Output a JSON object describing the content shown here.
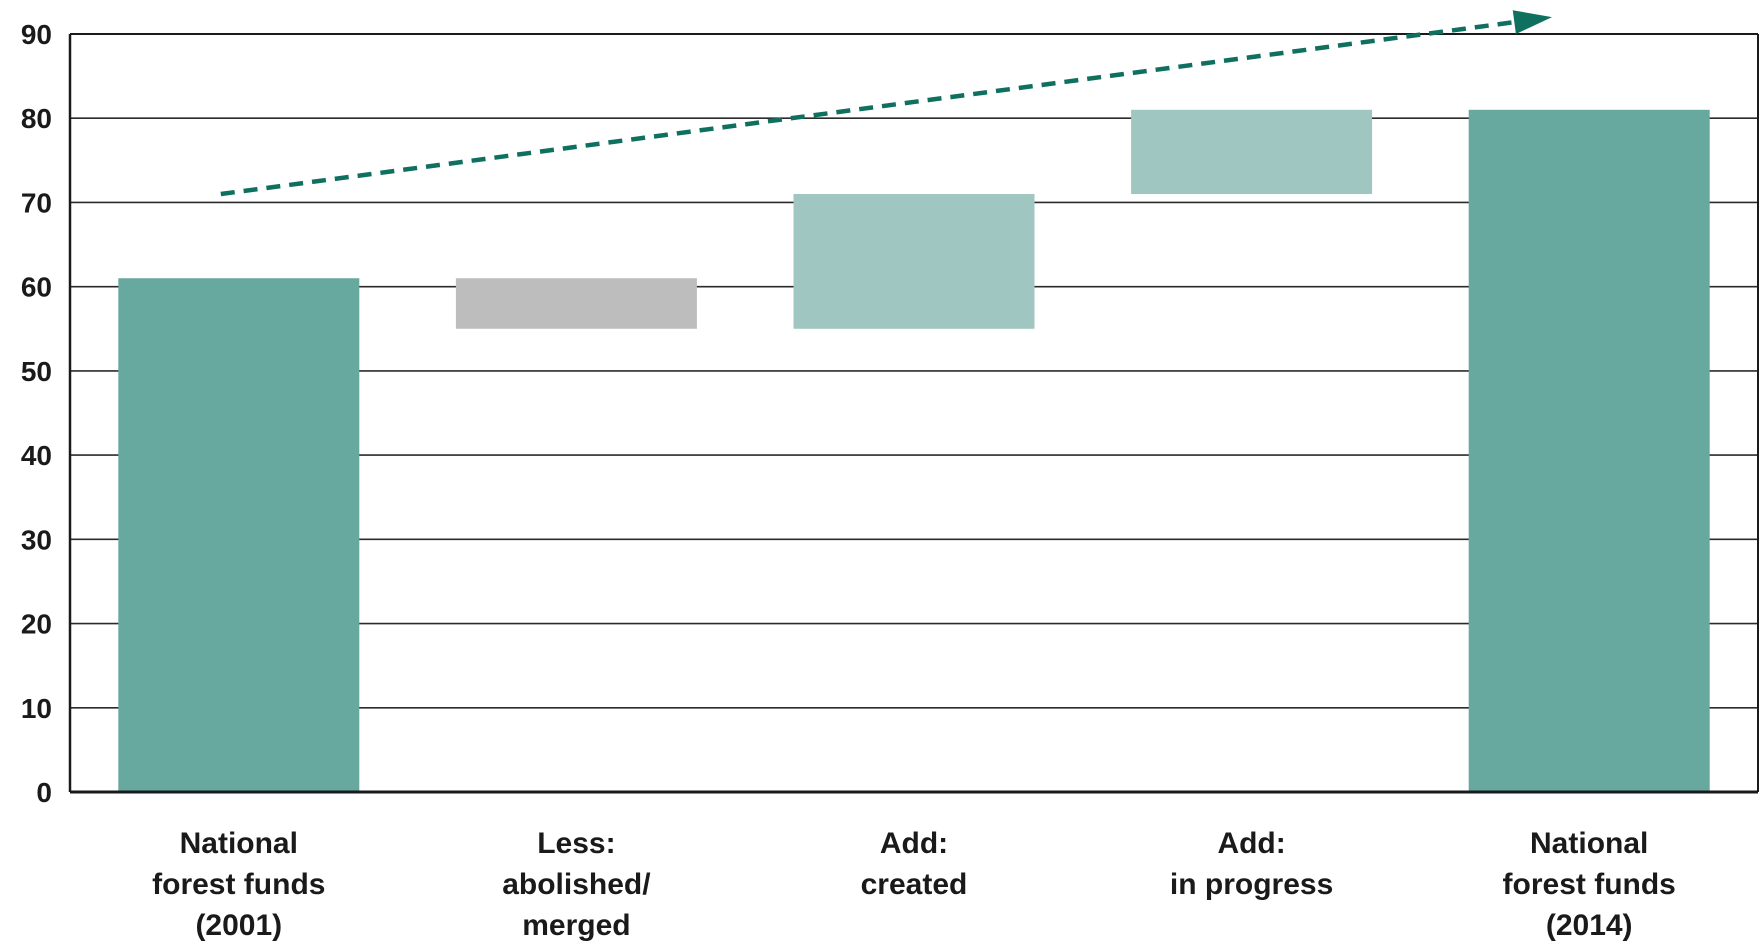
{
  "chart_data": {
    "type": "bar",
    "subtype": "waterfall",
    "title": "",
    "xlabel": "",
    "ylabel": "",
    "ylim": [
      0,
      90
    ],
    "yticks": [
      0,
      10,
      20,
      30,
      40,
      50,
      60,
      70,
      80,
      90
    ],
    "grid": true,
    "categories": [
      [
        "National",
        "forest funds",
        "(2001)"
      ],
      [
        "Less:",
        "abolished/",
        "merged"
      ],
      [
        "Add:",
        "created"
      ],
      [
        "Add:",
        "in progress"
      ],
      [
        "National",
        "forest funds",
        "(2014)"
      ]
    ],
    "bars": [
      {
        "base": 0,
        "top": 61,
        "kind": "total"
      },
      {
        "base": 55,
        "top": 61,
        "kind": "decrease"
      },
      {
        "base": 55,
        "top": 71,
        "kind": "increase"
      },
      {
        "base": 71,
        "top": 81,
        "kind": "increase"
      },
      {
        "base": 0,
        "top": 81,
        "kind": "total"
      }
    ],
    "trend_arrow": {
      "style": "dashed",
      "start": {
        "category_index": 0,
        "value": 71
      },
      "end": {
        "category_index": 4,
        "value": 92
      }
    },
    "colors": {
      "total": "#67a89f",
      "increase": "#9fc6c0",
      "decrease": "#bdbdbd",
      "arrow": "#0f7060",
      "grid": "#2b2b2b"
    }
  }
}
